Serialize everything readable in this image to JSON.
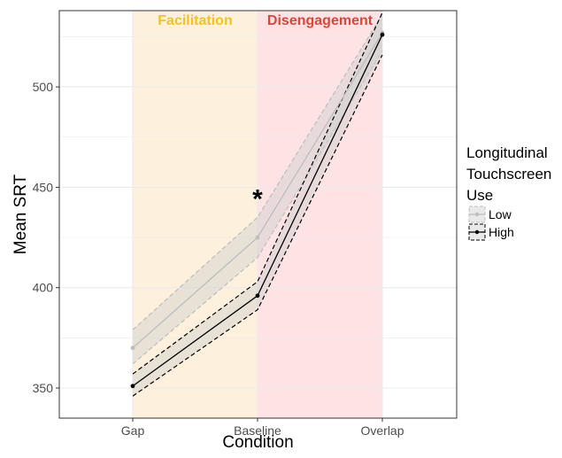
{
  "chart_data": {
    "type": "line",
    "categories": [
      "Gap",
      "Baseline",
      "Overlap"
    ],
    "xlabel": "Condition",
    "ylabel": "Mean SRT",
    "ylim": [
      335,
      538
    ],
    "yticks": [
      350,
      400,
      450,
      500
    ],
    "grid": true,
    "legend": {
      "title": "Longitudinal Touchscreen Use",
      "title_lines": [
        "Longitudinal",
        "Touchscreen",
        "Use"
      ],
      "position": "right"
    },
    "regions": [
      {
        "label": "Facilitation",
        "from": "Gap",
        "to": "Baseline",
        "color": "#fdf0dc",
        "label_color": "#f2c318"
      },
      {
        "label": "Disengagement",
        "from": "Baseline",
        "to": "Overlap",
        "color": "#fde3e3",
        "label_color": "#d9463b"
      }
    ],
    "annotations": [
      {
        "text": "*",
        "category": "Baseline",
        "y": 446
      }
    ],
    "series": [
      {
        "name": "Low",
        "values": [
          370,
          425,
          527
        ],
        "lower": [
          362,
          415,
          518
        ],
        "upper": [
          379,
          435,
          536
        ],
        "color": "#bdbdbd",
        "band_stroke": "#bdbdbd"
      },
      {
        "name": "High",
        "values": [
          351,
          396,
          526
        ],
        "lower": [
          346,
          389,
          516
        ],
        "upper": [
          357,
          403,
          537
        ],
        "color": "#000000",
        "band_stroke": "#000000"
      }
    ]
  }
}
